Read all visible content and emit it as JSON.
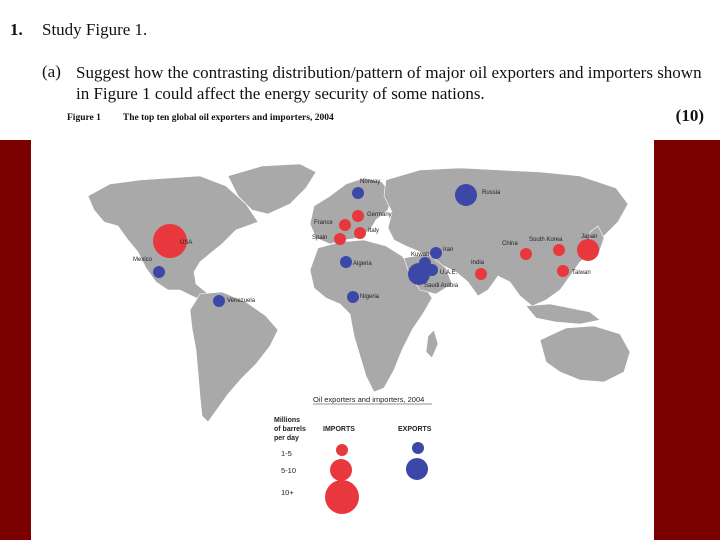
{
  "question": {
    "number": "1.",
    "title": "Study Figure 1.",
    "part_label": "(a)",
    "text": "Suggest how the contrasting distribution/pattern of major oil exporters and importers shown in Figure 1 could affect the energy security of some nations.",
    "marks": "(10)"
  },
  "figure": {
    "label": "Figure 1",
    "title": "The top ten global oil exporters and importers, 2004"
  },
  "colors": {
    "band": "#7b0000",
    "land": "#a9a9a9",
    "importer": "#e8383d",
    "exporter": "#3c48a8"
  },
  "map": {
    "importers": [
      {
        "name": "USA",
        "level": "10+"
      },
      {
        "name": "France",
        "level": "1-5"
      },
      {
        "name": "Germany",
        "level": "1-5"
      },
      {
        "name": "Spain",
        "level": "1-5"
      },
      {
        "name": "Italy",
        "level": "1-5"
      },
      {
        "name": "China",
        "level": "1-5"
      },
      {
        "name": "South Korea",
        "level": "1-5"
      },
      {
        "name": "Japan",
        "level": "5-10"
      },
      {
        "name": "India",
        "level": "1-5"
      },
      {
        "name": "Taiwan",
        "level": "1-5"
      }
    ],
    "exporters": [
      {
        "name": "Norway",
        "level": "1-5"
      },
      {
        "name": "Russia",
        "level": "5-10"
      },
      {
        "name": "Mexico",
        "level": "1-5"
      },
      {
        "name": "Algeria",
        "level": "1-5"
      },
      {
        "name": "Iran",
        "level": "1-5"
      },
      {
        "name": "Kuwait",
        "level": "1-5"
      },
      {
        "name": "U.A.E.",
        "level": "1-5"
      },
      {
        "name": "Saudi Arabia",
        "level": "5-10"
      },
      {
        "name": "Nigeria",
        "level": "1-5"
      },
      {
        "name": "Venezuela",
        "level": "1-5"
      }
    ]
  },
  "legend": {
    "title": "Oil exporters and importers, 2004",
    "unit_line1": "Millions",
    "unit_line2": "of barrels",
    "unit_line3": "per day",
    "imports_label": "IMPORTS",
    "exports_label": "EXPORTS",
    "bands": [
      "1-5",
      "5-10",
      "10+"
    ]
  }
}
